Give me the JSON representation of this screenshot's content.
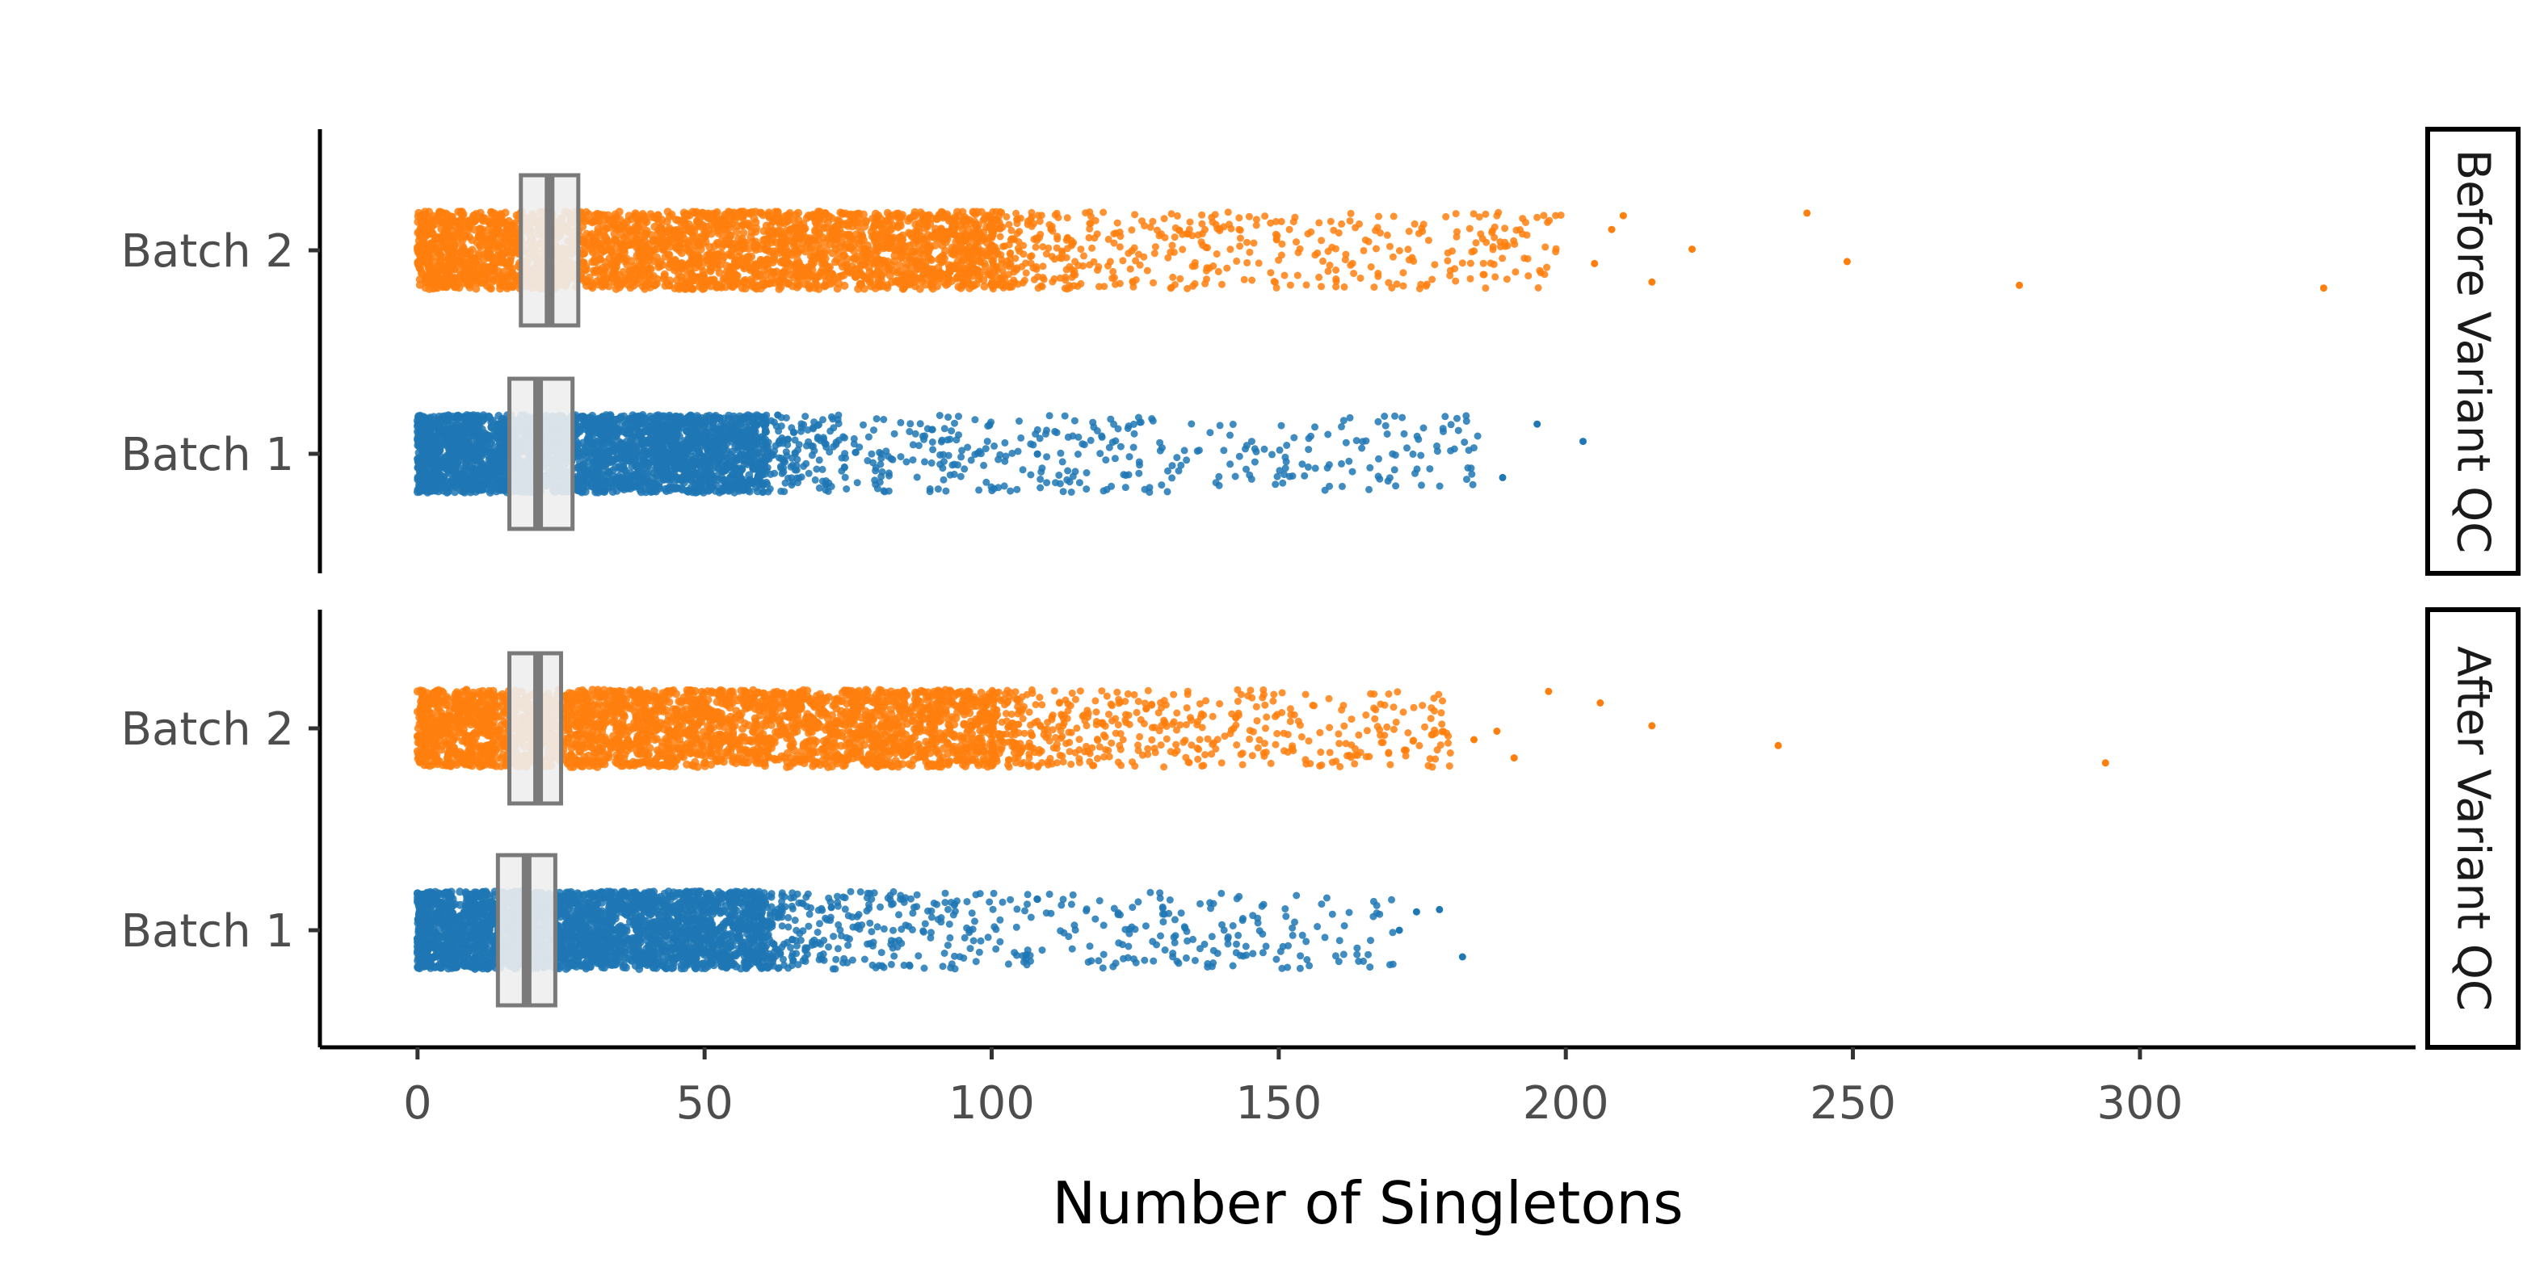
{
  "chart_data": {
    "type": "scatter",
    "subtype": "jittered strip plot with boxplots, faceted",
    "xlabel": "Number of Singletons",
    "ylabel": "",
    "xlim": [
      -17,
      348
    ],
    "x_ticks": [
      0,
      50,
      100,
      150,
      200,
      250,
      300
    ],
    "x_tick_labels": [
      "0",
      "50",
      "100",
      "150",
      "200",
      "250",
      "300"
    ],
    "grid": false,
    "legend": "none",
    "colors": {
      "Batch 1": "#1f77b4",
      "Batch 2": "#ff7f0e",
      "box_fill": "#eeeeee",
      "box_stroke": "#7a7a7a"
    },
    "panels": [
      {
        "strip_label": "Before Variant QC",
        "groups": [
          {
            "name": "Batch 2",
            "box": {
              "q1": 18,
              "median": 23,
              "q3": 28
            },
            "dense_range": [
              0,
              100
            ],
            "sparse_range": [
              100,
              200
            ],
            "outliers": [
              205,
              208,
              210,
              215,
              222,
              242,
              249,
              279,
              332
            ]
          },
          {
            "name": "Batch 1",
            "box": {
              "q1": 16,
              "median": 21,
              "q3": 27
            },
            "dense_range": [
              0,
              60
            ],
            "sparse_range": [
              60,
              185
            ],
            "outliers": [
              189,
              195,
              203
            ]
          }
        ]
      },
      {
        "strip_label": "After Variant QC",
        "groups": [
          {
            "name": "Batch 2",
            "box": {
              "q1": 16,
              "median": 21,
              "q3": 25
            },
            "dense_range": [
              0,
              100
            ],
            "sparse_range": [
              100,
              180
            ],
            "outliers": [
              184,
              188,
              191,
              197,
              206,
              215,
              237,
              294
            ]
          },
          {
            "name": "Batch 1",
            "box": {
              "q1": 14,
              "median": 19,
              "q3": 24
            },
            "dense_range": [
              0,
              60
            ],
            "sparse_range": [
              60,
              170
            ],
            "outliers": [
              171,
              174,
              178,
              182
            ]
          }
        ]
      }
    ]
  }
}
